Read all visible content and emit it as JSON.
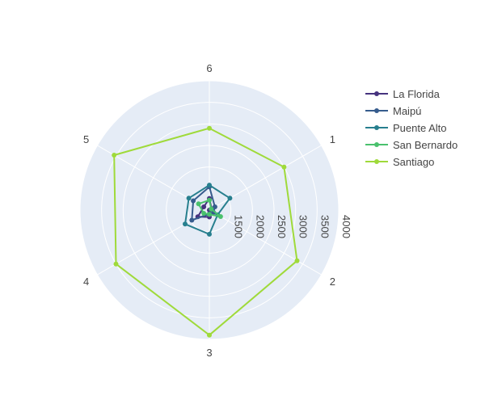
{
  "chart_data": {
    "type": "radar",
    "title": "",
    "angular_categories": [
      "1",
      "2",
      "3",
      "4",
      "5",
      "6"
    ],
    "radial_range": [
      1000,
      4000
    ],
    "radial_ticks": [
      "1500",
      "2000",
      "2500",
      "3000",
      "3500",
      "4000"
    ],
    "grid": true,
    "legend_position": "top-right",
    "series": [
      {
        "name": "La Florida",
        "color": "#46337e",
        "values": [
          1060,
          1000,
          1160,
          1310,
          1150,
          1270
        ]
      },
      {
        "name": "Maipú",
        "color": "#365c8d",
        "values": [
          1150,
          1110,
          1090,
          1470,
          1430,
          1540
        ]
      },
      {
        "name": "Puente Alto",
        "color": "#277f8e",
        "values": [
          1550,
          1220,
          1560,
          1650,
          1550,
          1580
        ]
      },
      {
        "name": "San Bernardo",
        "color": "#4ac16d",
        "values": [
          1050,
          1300,
          1100,
          1150,
          1290,
          1230
        ]
      },
      {
        "name": "Santiago",
        "color": "#9fda3a",
        "values": [
          3000,
          3350,
          3900,
          3500,
          3550,
          2900
        ]
      }
    ]
  }
}
